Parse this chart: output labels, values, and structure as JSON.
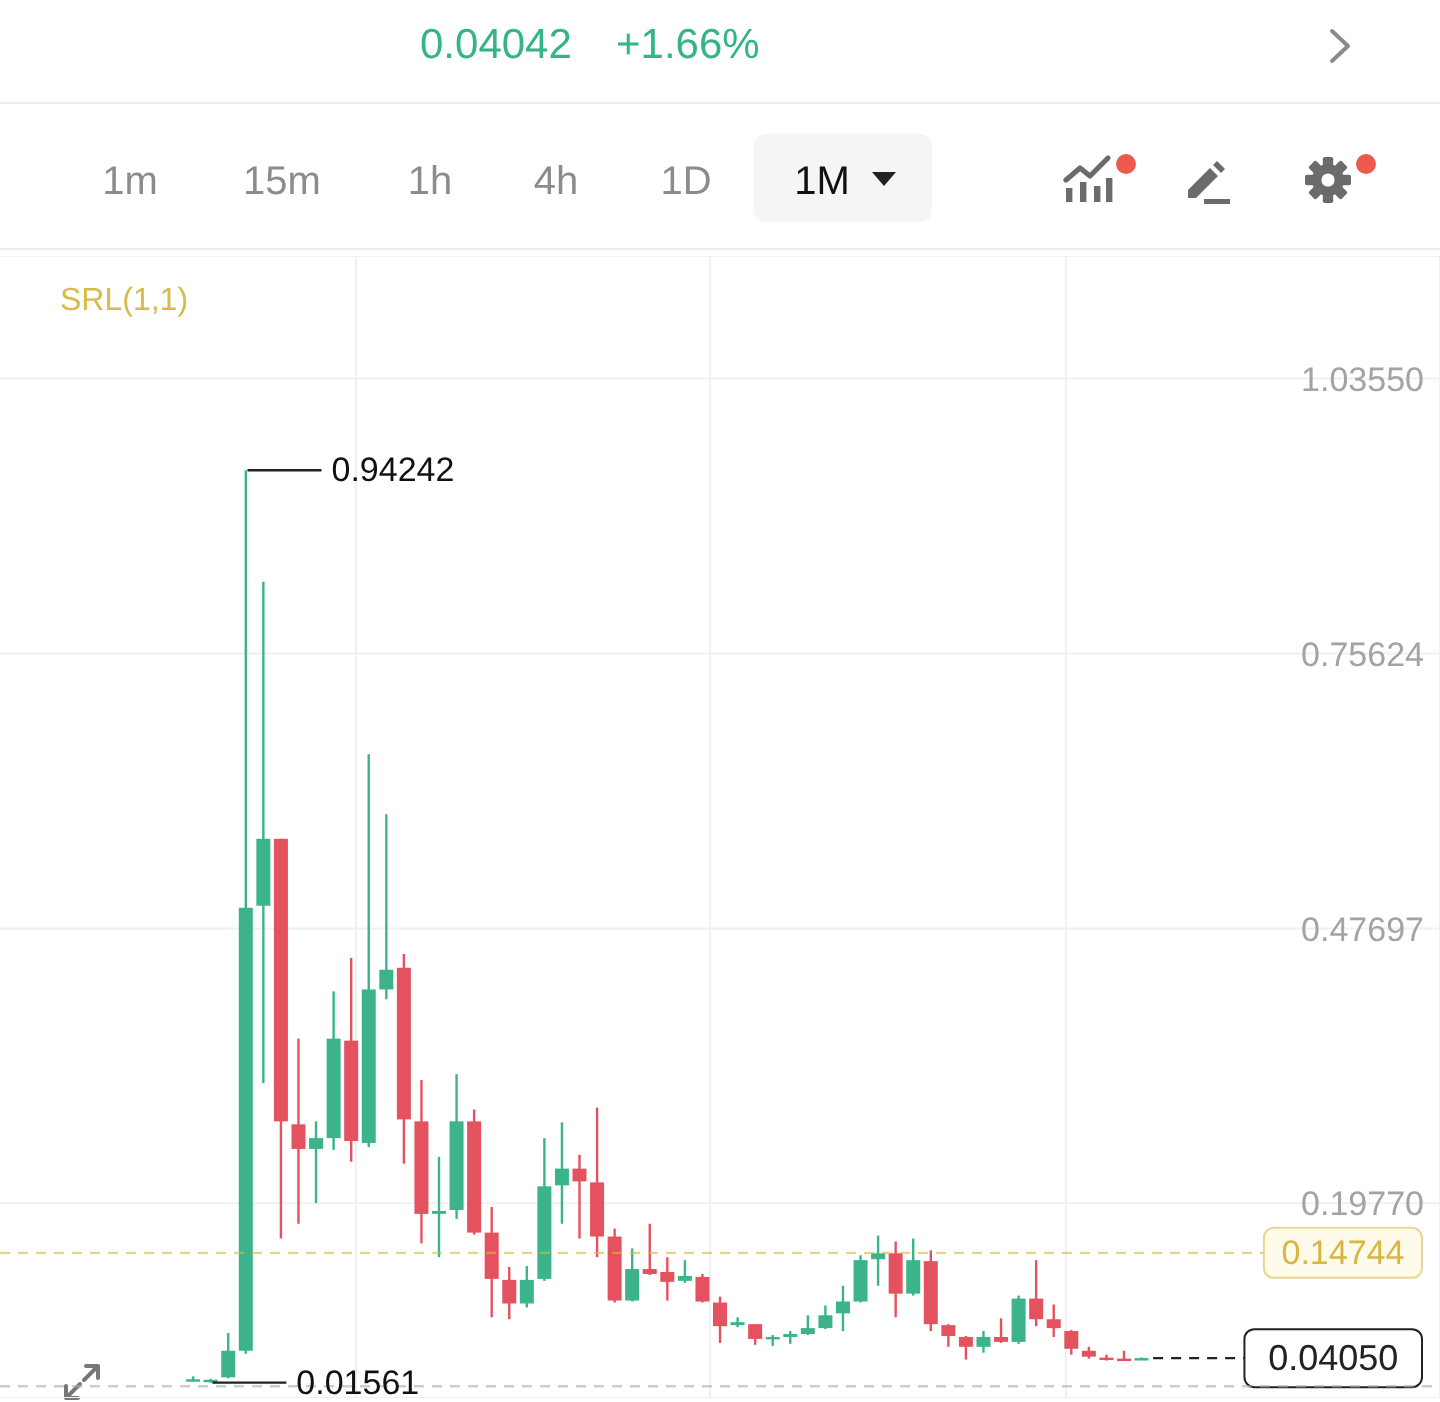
{
  "chart_data": {
    "type": "candlestick",
    "categories": [
      null,
      null,
      null,
      null,
      null,
      null,
      null,
      null,
      null,
      null,
      null,
      null,
      null,
      null,
      null,
      null,
      null,
      null,
      null,
      null,
      null,
      null,
      null,
      null,
      null,
      null,
      null,
      null,
      null,
      null,
      null,
      null,
      null,
      null,
      null,
      null,
      null,
      null,
      null,
      null,
      null,
      null,
      null,
      null,
      null,
      null,
      null,
      null,
      null,
      null,
      null,
      null,
      null,
      null,
      null
    ],
    "ohlc": [
      [
        0.019,
        0.022,
        0.017,
        0.019
      ],
      [
        0.0178,
        0.0195,
        0.01561,
        0.0185
      ],
      [
        0.021,
        0.066,
        0.02,
        0.048
      ],
      [
        0.048,
        0.94242,
        0.045,
        0.498
      ],
      [
        0.5,
        0.829,
        0.32,
        0.568
      ],
      [
        0.568,
        0.568,
        0.162,
        0.281
      ],
      [
        0.278,
        0.365,
        0.177,
        0.253
      ],
      [
        0.253,
        0.281,
        0.198,
        0.264
      ],
      [
        0.264,
        0.413,
        0.252,
        0.365
      ],
      [
        0.363,
        0.447,
        0.24,
        0.261
      ],
      [
        0.259,
        0.654,
        0.255,
        0.415
      ],
      [
        0.415,
        0.593,
        0.405,
        0.435
      ],
      [
        0.437,
        0.451,
        0.238,
        0.283
      ],
      [
        0.281,
        0.323,
        0.157,
        0.187
      ],
      [
        0.187,
        0.245,
        0.143,
        0.19
      ],
      [
        0.191,
        0.329,
        0.182,
        0.281
      ],
      [
        0.281,
        0.293,
        0.166,
        0.168
      ],
      [
        0.168,
        0.194,
        0.082,
        0.121
      ],
      [
        0.12,
        0.133,
        0.08,
        0.096
      ],
      [
        0.096,
        0.134,
        0.092,
        0.12
      ],
      [
        0.121,
        0.264,
        0.119,
        0.215
      ],
      [
        0.216,
        0.28,
        0.177,
        0.233
      ],
      [
        0.233,
        0.247,
        0.162,
        0.22
      ],
      [
        0.219,
        0.295,
        0.143,
        0.164
      ],
      [
        0.164,
        0.172,
        0.097,
        0.099
      ],
      [
        0.099,
        0.152,
        0.098,
        0.131
      ],
      [
        0.131,
        0.177,
        0.125,
        0.126
      ],
      [
        0.128,
        0.143,
        0.099,
        0.118
      ],
      [
        0.119,
        0.14,
        0.117,
        0.124
      ],
      [
        0.123,
        0.126,
        0.097,
        0.098
      ],
      [
        0.097,
        0.103,
        0.056,
        0.073
      ],
      [
        0.074,
        0.082,
        0.072,
        0.077
      ],
      [
        0.075,
        0.075,
        0.054,
        0.06
      ],
      [
        0.061,
        0.064,
        0.053,
        0.062
      ],
      [
        0.062,
        0.068,
        0.055,
        0.065
      ],
      [
        0.065,
        0.084,
        0.064,
        0.071
      ],
      [
        0.071,
        0.094,
        0.07,
        0.084
      ],
      [
        0.086,
        0.114,
        0.068,
        0.098
      ],
      [
        0.098,
        0.145,
        0.097,
        0.14
      ],
      [
        0.141,
        0.165,
        0.114,
        0.147
      ],
      [
        0.147,
        0.159,
        0.082,
        0.106
      ],
      [
        0.106,
        0.162,
        0.104,
        0.14
      ],
      [
        0.139,
        0.15,
        0.068,
        0.075
      ],
      [
        0.074,
        0.075,
        0.052,
        0.063
      ],
      [
        0.062,
        0.063,
        0.039,
        0.052
      ],
      [
        0.052,
        0.068,
        0.046,
        0.062
      ],
      [
        0.062,
        0.081,
        0.056,
        0.057
      ],
      [
        0.057,
        0.104,
        0.055,
        0.101
      ],
      [
        0.101,
        0.14,
        0.073,
        0.08
      ],
      [
        0.08,
        0.095,
        0.062,
        0.071
      ],
      [
        0.068,
        0.069,
        0.044,
        0.05
      ],
      [
        0.048,
        0.052,
        0.04,
        0.042
      ],
      [
        0.041,
        0.044,
        0.038,
        0.04
      ],
      [
        0.04,
        0.048,
        0.038,
        0.04
      ],
      [
        0.0398,
        0.0412,
        0.039,
        0.0405
      ]
    ],
    "colors": [
      "#3bb48a",
      "#3bb48a",
      "#3bb48a",
      "#3bb48a",
      "#3bb48a",
      "#e5525f",
      "#e5525f",
      "#3bb48a",
      "#3bb48a",
      "#e5525f",
      "#3bb48a",
      "#3bb48a",
      "#e5525f",
      "#e5525f",
      "#3bb48a",
      "#3bb48a",
      "#e5525f",
      "#e5525f",
      "#e5525f",
      "#3bb48a",
      "#3bb48a",
      "#3bb48a",
      "#e5525f",
      "#e5525f",
      "#e5525f",
      "#3bb48a",
      "#e5525f",
      "#e5525f",
      "#3bb48a",
      "#e5525f",
      "#e5525f",
      "#3bb48a",
      "#e5525f",
      "#3bb48a",
      "#3bb48a",
      "#3bb48a",
      "#3bb48a",
      "#3bb48a",
      "#3bb48a",
      "#3bb48a",
      "#e5525f",
      "#3bb48a",
      "#e5525f",
      "#e5525f",
      "#e5525f",
      "#3bb48a",
      "#e5525f",
      "#3bb48a",
      "#e5525f",
      "#e5525f",
      "#e5525f",
      "#e5525f",
      "#e5525f",
      "#e5525f",
      "#3bb48a"
    ],
    "ylim": [
      0,
      1.16
    ],
    "yticks": [
      {
        "value": 0.1977,
        "label": "0.19770"
      },
      0.47697,
      0.75624,
      {
        "value": 1.0355,
        "label": "1.03550"
      }
    ],
    "grid": true,
    "tick_labels": "y",
    "ref_lines": [
      {
        "axis": "y",
        "value": 0.14744,
        "label": "0.14744",
        "color": "#d9b641",
        "line_style": "dashed"
      },
      {
        "axis": "y",
        "value": 0.0405,
        "label": "0.04050",
        "color": "#222222",
        "line_style": "dashed"
      },
      {
        "axis": "y",
        "value": 0.012,
        "color": "#ababab",
        "line_style": "dashed"
      }
    ],
    "annotations": [
      "0.04042",
      "+1.66%",
      "1m",
      "15m",
      "1h",
      "4h",
      "1D",
      "1M",
      "SRL(1,1)",
      "0.94242",
      "0.01561"
    ]
  }
}
